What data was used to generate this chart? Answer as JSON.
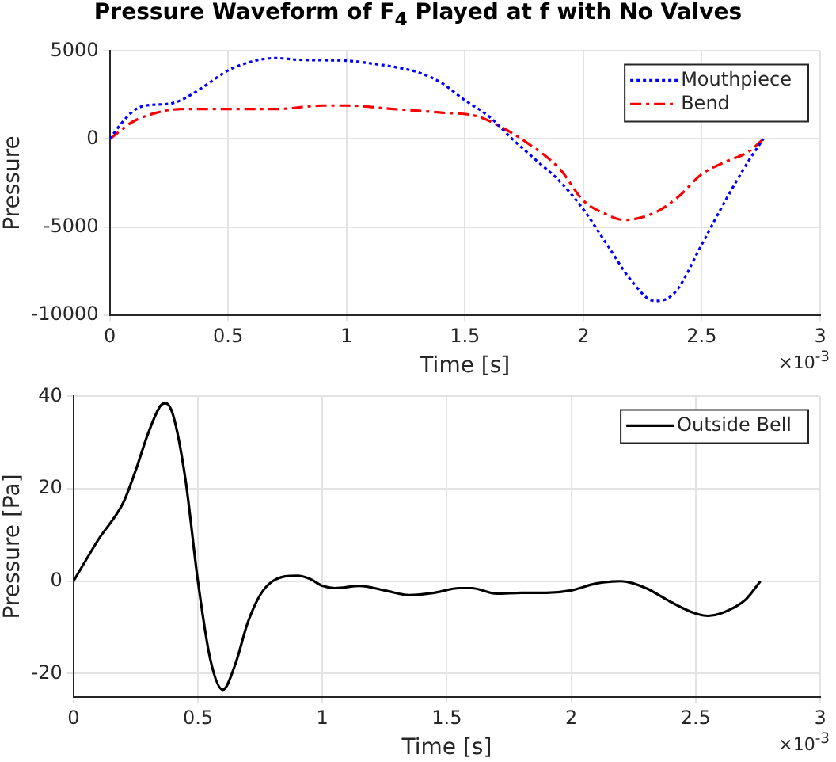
{
  "chart_data": [
    {
      "type": "line",
      "title": "Pressure Waveform of F$_{4}$ Played at f with No Valves",
      "xlabel": "Time [s]",
      "ylabel": "Pressure",
      "annotations": [
        "×10$^{-3}$"
      ],
      "xlim": [
        0,
        3
      ],
      "xticks": [
        0,
        0.5,
        1,
        1.5,
        2,
        2.5,
        3
      ],
      "ylim": [
        -10000,
        5000
      ],
      "yticks": [
        -10000,
        -5000,
        0,
        5000
      ],
      "grid": true,
      "legend": "top right",
      "marker": "none",
      "series": [
        {
          "name": "Mouthpiece",
          "color": "#0000ff",
          "line_style": "dotted",
          "x": [
            0,
            0.05,
            0.1,
            0.15,
            0.25,
            0.3,
            0.4,
            0.5,
            0.6,
            0.7,
            0.8,
            1.0,
            1.1,
            1.2,
            1.3,
            1.4,
            1.5,
            1.6,
            1.7,
            1.8,
            1.9,
            2.0,
            2.1,
            2.2,
            2.3,
            2.35,
            2.4,
            2.5,
            2.6,
            2.7,
            2.76
          ],
          "values": [
            0,
            900,
            1600,
            1900,
            2000,
            2200,
            3000,
            3900,
            4400,
            4600,
            4500,
            4450,
            4300,
            4100,
            3800,
            3200,
            2200,
            1300,
            0,
            -1200,
            -2400,
            -4000,
            -6000,
            -8000,
            -9200,
            -9100,
            -8500,
            -6000,
            -3500,
            -1200,
            0
          ]
        },
        {
          "name": "Bend",
          "color": "#ff0000",
          "line_style": "dashed",
          "x": [
            0,
            0.1,
            0.2,
            0.3,
            0.5,
            0.7,
            0.9,
            1.0,
            1.2,
            1.4,
            1.55,
            1.65,
            1.75,
            1.9,
            2.0,
            2.1,
            2.17,
            2.3,
            2.4,
            2.5,
            2.6,
            2.7,
            2.76
          ],
          "values": [
            0,
            1000,
            1500,
            1700,
            1700,
            1700,
            1900,
            1900,
            1700,
            1500,
            1300,
            700,
            -100,
            -1700,
            -3500,
            -4300,
            -4600,
            -4200,
            -3300,
            -2000,
            -1300,
            -700,
            0
          ]
        }
      ]
    },
    {
      "type": "line",
      "xlabel": "Time [s]",
      "ylabel": "Pressure [Pa]",
      "annotations": [
        "×10$^{-3}$"
      ],
      "xlim": [
        0,
        3
      ],
      "xticks": [
        0,
        0.5,
        1,
        1.5,
        2,
        2.5,
        3
      ],
      "ylim": [
        -25,
        40
      ],
      "yticks": [
        -20,
        0,
        20,
        40
      ],
      "grid": true,
      "legend": "top right",
      "marker": "none",
      "series": [
        {
          "name": "Outside Bell",
          "color": "#000000",
          "line_style": "solid",
          "x": [
            0,
            0.1,
            0.2,
            0.25,
            0.3,
            0.35,
            0.37,
            0.4,
            0.45,
            0.5,
            0.55,
            0.6,
            0.65,
            0.7,
            0.75,
            0.8,
            0.9,
            0.95,
            1.0,
            1.05,
            1.15,
            1.25,
            1.35,
            1.45,
            1.55,
            1.6,
            1.7,
            1.8,
            1.9,
            2.0,
            2.1,
            2.2,
            2.3,
            2.4,
            2.5,
            2.55,
            2.6,
            2.7,
            2.76
          ],
          "values": [
            0,
            9,
            17,
            24,
            32,
            38,
            38.5,
            36,
            22,
            0,
            -17,
            -23.5,
            -18,
            -9,
            -3,
            0,
            1.2,
            0.5,
            -1,
            -1.5,
            -1,
            -2,
            -3,
            -2.5,
            -1.5,
            -1.5,
            -2.7,
            -2.5,
            -2.5,
            -2,
            -0.5,
            0,
            -1.5,
            -4.5,
            -7,
            -7.5,
            -7,
            -4,
            0
          ]
        }
      ]
    }
  ]
}
